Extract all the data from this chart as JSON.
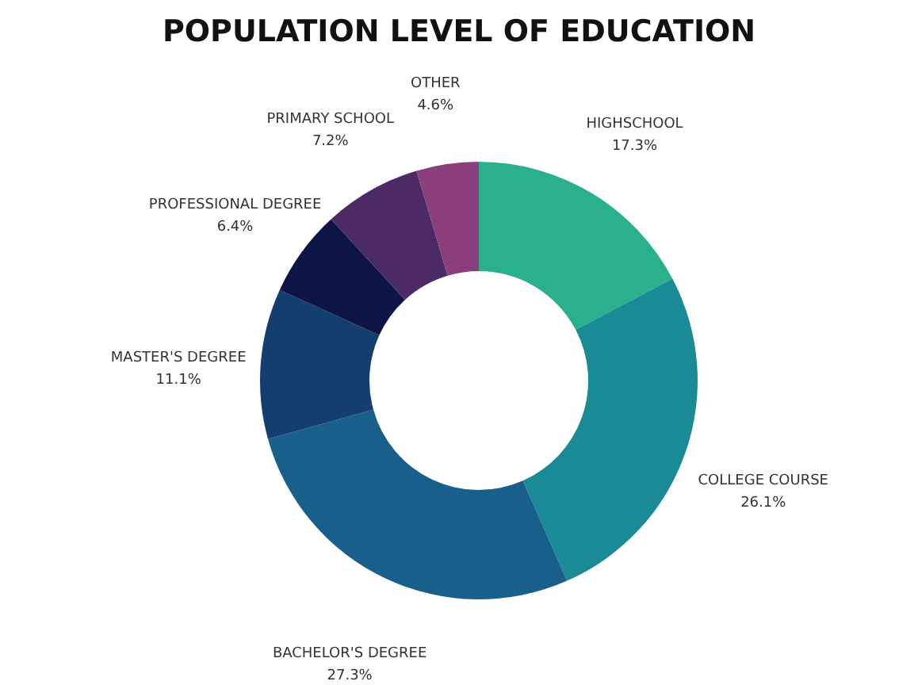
{
  "chart_data": {
    "type": "donut",
    "title": "POPULATION LEVEL OF EDUCATION",
    "categories": [
      "HIGHSCHOOL",
      "COLLEGE COURSE",
      "BACHELOR'S DEGREE",
      "MASTER'S DEGREE",
      "PROFESSIONAL DEGREE",
      "PRIMARY SCHOOL",
      "OTHER"
    ],
    "values": [
      17.3,
      26.1,
      27.3,
      11.1,
      6.4,
      7.2,
      4.6
    ],
    "value_labels": [
      "17.3%",
      "26.1%",
      "27.3%",
      "11.1%",
      "6.4%",
      "7.2%",
      "4.6%"
    ],
    "colors": [
      "#2bb08e",
      "#1a8a96",
      "#185f8c",
      "#153e70",
      "#0c1546",
      "#4b2a66",
      "#8a3f7c"
    ],
    "legend": false
  }
}
